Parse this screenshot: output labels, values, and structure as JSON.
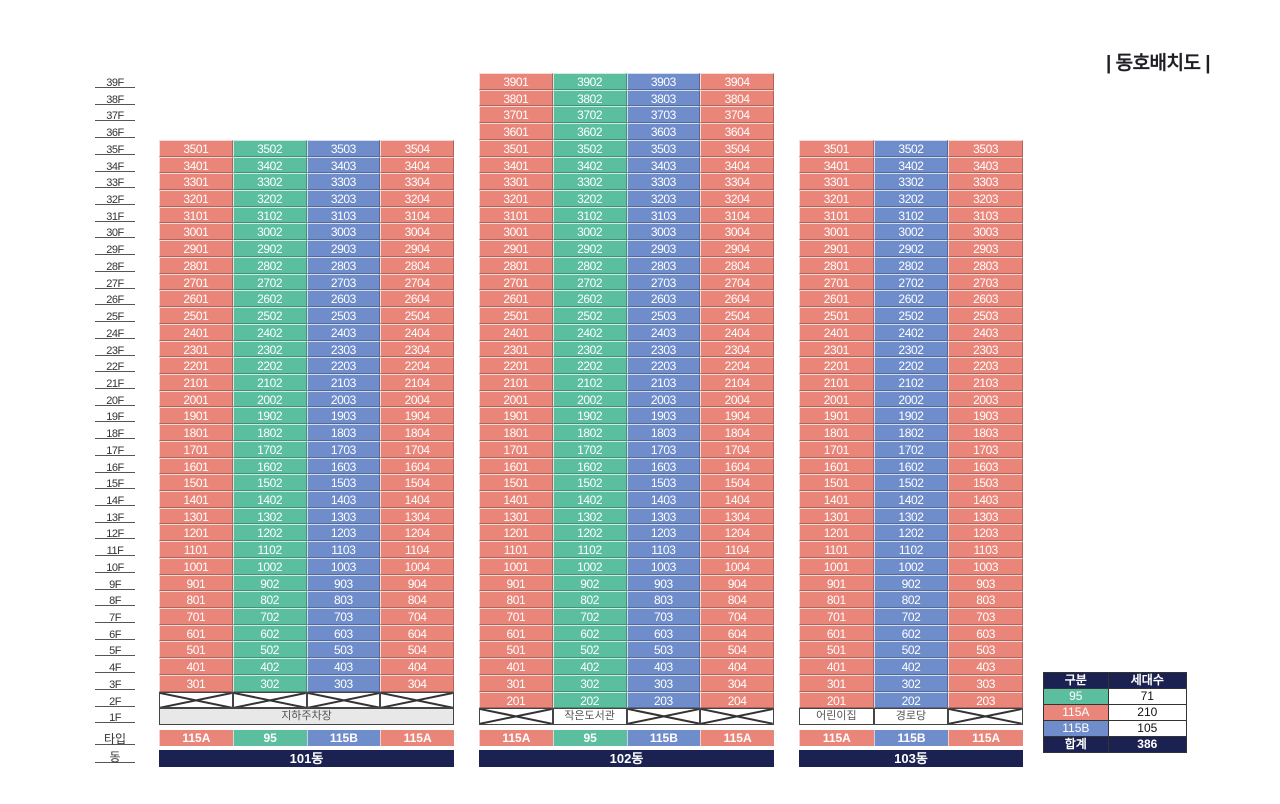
{
  "title": "| 동호배치도 |",
  "floor_labels": [
    "39F",
    "38F",
    "37F",
    "36F",
    "35F",
    "34F",
    "33F",
    "32F",
    "31F",
    "30F",
    "29F",
    "28F",
    "27F",
    "26F",
    "25F",
    "24F",
    "23F",
    "22F",
    "21F",
    "20F",
    "19F",
    "18F",
    "17F",
    "16F",
    "15F",
    "14F",
    "13F",
    "12F",
    "11F",
    "10F",
    "9F",
    "8F",
    "7F",
    "6F",
    "5F",
    "4F",
    "3F",
    "2F",
    "1F"
  ],
  "row_labels": {
    "type": "타입",
    "building": "동"
  },
  "colors": {
    "115A": "#ea857a",
    "95": "#5bbf9f",
    "115B": "#6f8ccb",
    "navy": "#1b2150"
  },
  "buildings": [
    {
      "name": "101동",
      "top_floor": 35,
      "bottom_floor": 3,
      "column_types": [
        "115A",
        "95",
        "115B",
        "115A"
      ],
      "first_floor_facility": "지하주차장",
      "second_floor": "crossed"
    },
    {
      "name": "102동",
      "top_floor": 39,
      "bottom_floor": 2,
      "column_types": [
        "115A",
        "95",
        "115B",
        "115A"
      ],
      "first_floor_facility": "작은도서관",
      "second_floor": "units"
    },
    {
      "name": "103동",
      "top_floor": 35,
      "bottom_floor": 2,
      "column_types": [
        "115A",
        "115B",
        "115A"
      ],
      "first_floor_facilities": [
        "어린이집",
        "경로당"
      ],
      "second_floor": "units"
    }
  ],
  "legend": {
    "headers": [
      "구분",
      "세대수"
    ],
    "rows": [
      {
        "type": "95",
        "count": "71"
      },
      {
        "type": "115A",
        "count": "210"
      },
      {
        "type": "115B",
        "count": "105"
      }
    ],
    "total_label": "합계",
    "total": "386"
  }
}
